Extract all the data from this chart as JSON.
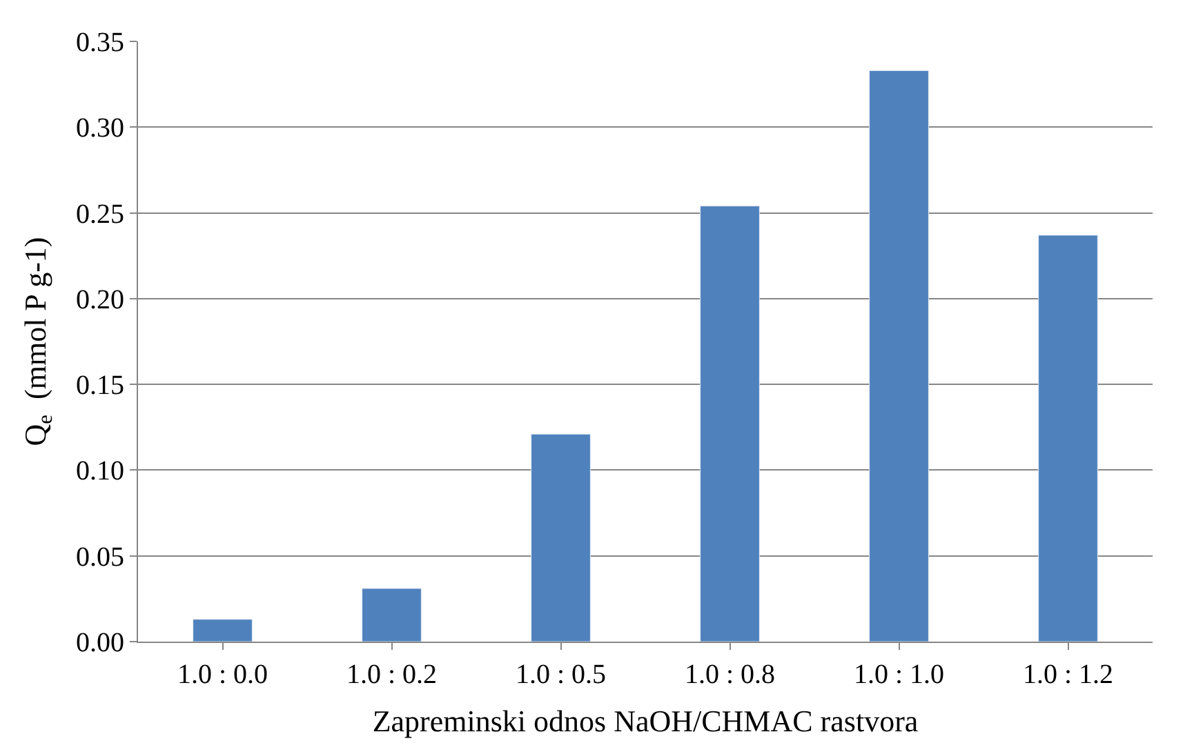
{
  "chart_data": {
    "type": "bar",
    "xlabel": "Zapreminski odnos NaOH/CHMAC rastvora",
    "ylabel": "Q$_{e}$  (mmol P g-1)",
    "categories": [
      "1.0 : 0.0",
      "1.0 : 0.2",
      "1.0 : 0.5",
      "1.0 : 0.8",
      "1.0 : 1.0",
      "1.0 : 1.2"
    ],
    "values": [
      0.013,
      0.031,
      0.121,
      0.254,
      0.333,
      0.237
    ],
    "color": "#4f81bd",
    "ylim": [
      0,
      0.35
    ],
    "yticks": [
      {
        "value": 0,
        "label": "0.00"
      },
      {
        "value": 0.05,
        "label": "0.05"
      },
      {
        "value": 0.1,
        "label": "0.10"
      },
      {
        "value": 0.15,
        "label": "0.15"
      },
      {
        "value": 0.2,
        "label": "0.20"
      },
      {
        "value": 0.25,
        "label": "0.25"
      },
      {
        "value": 0.3,
        "label": "0.30"
      },
      {
        "value": 0.35,
        "label": "0.35"
      }
    ],
    "grid": "y"
  }
}
